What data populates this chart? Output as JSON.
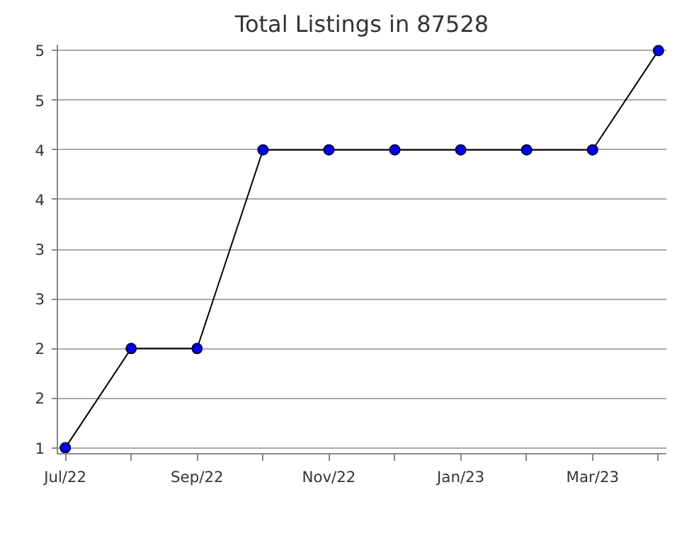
{
  "chart_data": {
    "type": "line",
    "title": "Total Listings in 87528",
    "categories": [
      "Jul/22",
      null,
      "Sep/22",
      null,
      "Nov/22",
      null,
      "Jan/23",
      null,
      "Mar/23",
      null
    ],
    "series": [
      {
        "color": "#0000ff",
        "values": [
          1,
          2,
          2,
          4,
          4,
          4,
          4,
          4,
          4,
          5
        ]
      }
    ],
    "ylim": [
      1,
      5
    ],
    "yticks": [
      1,
      {
        "value": 1.5,
        "label": "2"
      },
      2,
      {
        "value": 2.5,
        "label": "3"
      },
      3,
      {
        "value": 3.5,
        "label": "4"
      },
      4,
      {
        "value": 4.5,
        "label": "5"
      },
      5
    ],
    "grid": "y",
    "marker": "circle",
    "line_style": "solid"
  }
}
